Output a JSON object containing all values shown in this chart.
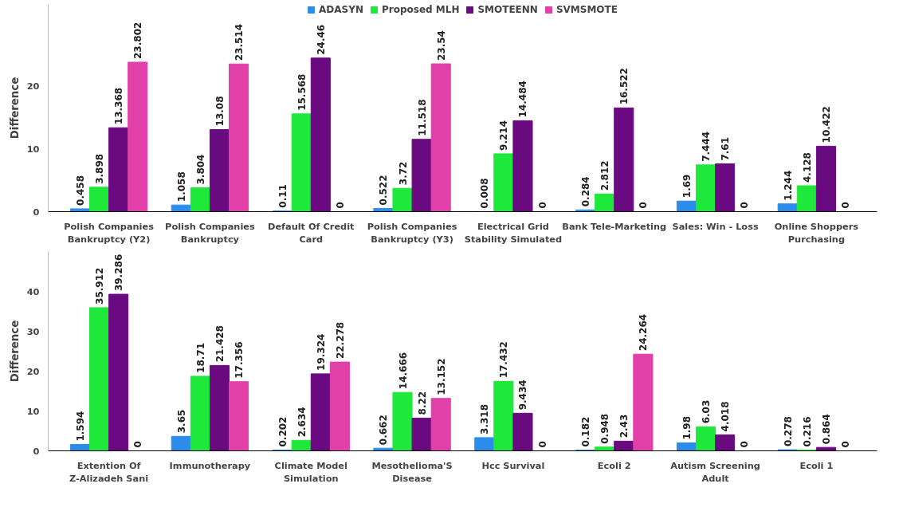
{
  "chart_data": [
    {
      "type": "bar",
      "ylabel": "Difference",
      "categories": [
        "Polish Companies Bankruptcy (Y2)",
        "Polish Companies Bankruptcy",
        "Default Of Credit Card",
        "Polish Companies Bankruptcy (Y3)",
        "Electrical Grid Stability Simulated",
        "Bank Tele-Marketing",
        "Sales: Win - Loss",
        "Online Shoppers Purchasing"
      ],
      "series": [
        {
          "name": "ADASYN",
          "color": "#2b8ceb",
          "values": [
            0.458,
            1.058,
            0.11,
            0.522,
            0.008,
            0.284,
            1.69,
            1.244
          ]
        },
        {
          "name": "Proposed MLH",
          "color": "#1ee83a",
          "values": [
            3.898,
            3.804,
            15.568,
            3.72,
            9.214,
            2.812,
            7.444,
            4.128
          ]
        },
        {
          "name": "SMOTEENN",
          "color": "#6a0a80",
          "values": [
            13.368,
            13.08,
            24.46,
            11.518,
            14.484,
            16.522,
            7.61,
            10.422
          ]
        },
        {
          "name": "SVMSMOTE",
          "color": "#e040a8",
          "values": [
            23.802,
            23.514,
            0,
            23.54,
            0,
            0,
            0,
            0
          ]
        }
      ],
      "ylim": [
        0,
        33
      ],
      "yticks": [
        0,
        10,
        20
      ],
      "data_labels": true,
      "legend": "top"
    },
    {
      "type": "bar",
      "ylabel": "Difference",
      "categories": [
        "Extention Of Z-Alizadeh Sani",
        "Immunotherapy",
        "Climate Model Simulation",
        "Mesothelioma'S Disease",
        "Hcc Survival",
        "Ecoli 2",
        "Autism Screening Adult",
        "Ecoli 1"
      ],
      "series": [
        {
          "color": "#2b8ceb",
          "values": [
            1.594,
            3.65,
            0.202,
            0.662,
            3.318,
            0.182,
            1.98,
            0.278
          ]
        },
        {
          "color": "#1ee83a",
          "values": [
            35.912,
            18.71,
            2.634,
            14.666,
            17.432,
            0.948,
            6.03,
            0.216
          ]
        },
        {
          "color": "#6a0a80",
          "values": [
            39.286,
            21.428,
            19.324,
            8.22,
            9.434,
            2.43,
            4.018,
            0.864
          ]
        },
        {
          "color": "#e040a8",
          "values": [
            0,
            17.356,
            22.278,
            13.152,
            0,
            24.264,
            0,
            0
          ]
        }
      ],
      "ylim": [
        0,
        50
      ],
      "yticks": [
        0,
        10,
        20,
        30,
        40
      ],
      "data_labels": true
    }
  ]
}
